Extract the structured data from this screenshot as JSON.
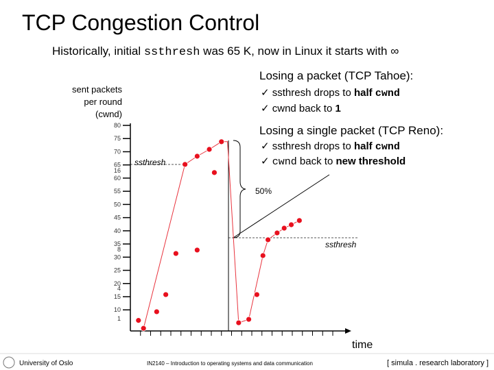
{
  "title": "TCP Congestion Control",
  "subtitle": [
    "Historically, initial ",
    "ssthresh",
    " was 65 K, now in Linux it starts with ∞"
  ],
  "tahoe": {
    "heading": "Losing a packet (TCP Tahoe):",
    "bullets": [
      [
        "ssthresh drops to ",
        "half",
        " ",
        "cwnd"
      ],
      [
        "cwnd back to ",
        "1"
      ]
    ]
  },
  "reno": {
    "heading": "Losing a single packet (TCP Reno):",
    "bullets": [
      [
        "ssthresh drops to ",
        "half",
        " ",
        "cwnd"
      ],
      [
        "cwnd",
        " back to ",
        "new threshold"
      ]
    ]
  },
  "footer": {
    "left": "University of Oslo",
    "center": "IN2140 – Introduction to operating systems and data communication",
    "right": "[ simula . research laboratory ]"
  },
  "chart_data": {
    "type": "scatter",
    "y_label": [
      "sent packets",
      "per round",
      "(cwnd)"
    ],
    "x_label": "time",
    "annotations": [
      "ssthresh",
      "ssthresh",
      "50%"
    ],
    "inner_labels": [
      16,
      8,
      4,
      1
    ],
    "xlim": [
      0,
      20
    ],
    "xticks": [
      1,
      2,
      3,
      4,
      5,
      6,
      7,
      8,
      9,
      10,
      11,
      12,
      13,
      14,
      15,
      16,
      17,
      18,
      19,
      20
    ],
    "ylim": [
      2,
      80
    ],
    "yticks": [
      80,
      75,
      70,
      65,
      60,
      55,
      50,
      45,
      40,
      35,
      30,
      25,
      20,
      15,
      10
    ],
    "line": {
      "color": "#e8323c",
      "x": [
        1.3,
        5.4,
        6.6,
        7.8,
        9.0,
        9.6,
        10.7,
        11.7,
        13.1,
        13.6,
        14.5,
        15.2,
        15.9,
        16.7
      ],
      "values": [
        3,
        65.2,
        68.3,
        70.9,
        73.8,
        73.8,
        5.1,
        6.4,
        30.6,
        36.6,
        39.2,
        41,
        42.3,
        43.9
      ]
    },
    "points": {
      "color": "#e8101e",
      "x": [
        0.8,
        1.3,
        2.6,
        3.5,
        4.5,
        5.4,
        6.6,
        7.8,
        9.0,
        8.3,
        6.6,
        10.7,
        11.7,
        12.5,
        13.1,
        13.6,
        14.5,
        15.2,
        15.9,
        16.7
      ],
      "values": [
        6,
        3,
        9.3,
        15.8,
        31.4,
        65.2,
        68.3,
        70.9,
        73.8,
        62.1,
        32.7,
        5.1,
        6.4,
        15.8,
        30.6,
        36.6,
        39.2,
        41,
        42.3,
        43.9
      ]
    }
  }
}
